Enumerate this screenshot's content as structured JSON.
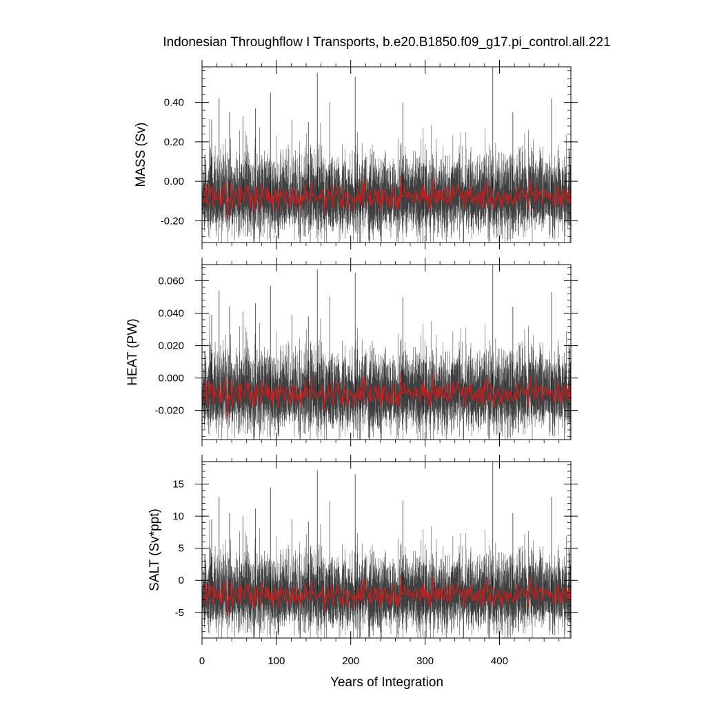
{
  "chart_data": {
    "type": "line",
    "title": "Indonesian Throughflow I Transports, b.e20.B1850.f09_g17.pi_control.all.221",
    "xlabel": "Years of Integration",
    "xlim": [
      0,
      496
    ],
    "xticks": [
      {
        "value": 0,
        "label": "0"
      },
      {
        "value": 100,
        "label": "100"
      },
      {
        "value": 200,
        "label": "200"
      },
      {
        "value": 300,
        "label": "300"
      },
      {
        "value": 400,
        "label": "400"
      }
    ],
    "colors": {
      "monthly": "#000000",
      "annual": "#c81e1e",
      "axis": "#000000"
    },
    "panels": [
      {
        "id": "mass",
        "ylabel": "MASS (Sv)",
        "ylim": [
          -0.31,
          0.58
        ],
        "yticks": [
          {
            "value": -0.2,
            "label": "-0.20"
          },
          {
            "value": 0.0,
            "label": "0.00"
          },
          {
            "value": 0.2,
            "label": "0.20"
          },
          {
            "value": 0.4,
            "label": "0.40"
          }
        ],
        "minor_step": 0.04,
        "mean": -0.09,
        "noise_sd": 0.085,
        "spikes": [
          {
            "x": 13,
            "y": 0.31
          },
          {
            "x": 23,
            "y": 0.42
          },
          {
            "x": 37,
            "y": 0.35
          },
          {
            "x": 55,
            "y": 0.33
          },
          {
            "x": 72,
            "y": 0.37
          },
          {
            "x": 92,
            "y": 0.45
          },
          {
            "x": 121,
            "y": 0.31
          },
          {
            "x": 143,
            "y": 0.3
          },
          {
            "x": 155,
            "y": 0.55
          },
          {
            "x": 172,
            "y": 0.4
          },
          {
            "x": 206,
            "y": 0.53
          },
          {
            "x": 213,
            "y": -0.31
          },
          {
            "x": 270,
            "y": 0.4
          },
          {
            "x": 297,
            "y": -0.31
          },
          {
            "x": 391,
            "y": 0.58
          },
          {
            "x": 418,
            "y": 0.35
          },
          {
            "x": 470,
            "y": 0.42
          }
        ],
        "annual_mean_approx": -0.09
      },
      {
        "id": "heat",
        "ylabel": "HEAT (PW)",
        "ylim": [
          -0.038,
          0.07
        ],
        "yticks": [
          {
            "value": -0.02,
            "label": "-0.020"
          },
          {
            "value": 0.0,
            "label": "0.000"
          },
          {
            "value": 0.02,
            "label": "0.020"
          },
          {
            "value": 0.04,
            "label": "0.040"
          },
          {
            "value": 0.06,
            "label": "0.060"
          }
        ],
        "minor_step": 0.004,
        "mean": -0.011,
        "noise_sd": 0.0105,
        "spikes": [
          {
            "x": 13,
            "y": 0.039
          },
          {
            "x": 23,
            "y": 0.054
          },
          {
            "x": 37,
            "y": 0.044
          },
          {
            "x": 55,
            "y": 0.041
          },
          {
            "x": 72,
            "y": 0.046
          },
          {
            "x": 92,
            "y": 0.057
          },
          {
            "x": 121,
            "y": 0.039
          },
          {
            "x": 143,
            "y": 0.038
          },
          {
            "x": 155,
            "y": 0.067
          },
          {
            "x": 172,
            "y": 0.05
          },
          {
            "x": 206,
            "y": 0.065
          },
          {
            "x": 213,
            "y": -0.038
          },
          {
            "x": 270,
            "y": 0.05
          },
          {
            "x": 297,
            "y": -0.038
          },
          {
            "x": 391,
            "y": 0.07
          },
          {
            "x": 418,
            "y": 0.044
          },
          {
            "x": 470,
            "y": 0.053
          }
        ],
        "annual_mean_approx": -0.011
      },
      {
        "id": "salt",
        "ylabel": "SALT (Sv*ppt)",
        "ylim": [
          -9.0,
          18.5
        ],
        "yticks": [
          {
            "value": -5,
            "label": "-5"
          },
          {
            "value": 0,
            "label": "0"
          },
          {
            "value": 5,
            "label": "5"
          },
          {
            "value": 10,
            "label": "10"
          },
          {
            "value": 15,
            "label": "15"
          }
        ],
        "minor_step": 1,
        "mean": -2.6,
        "noise_sd": 2.5,
        "spikes": [
          {
            "x": 13,
            "y": 9.5
          },
          {
            "x": 23,
            "y": 13.0
          },
          {
            "x": 37,
            "y": 10.5
          },
          {
            "x": 55,
            "y": 10.0
          },
          {
            "x": 72,
            "y": 11.2
          },
          {
            "x": 92,
            "y": 14.5
          },
          {
            "x": 121,
            "y": 9.5
          },
          {
            "x": 143,
            "y": 9.2
          },
          {
            "x": 155,
            "y": 17.2
          },
          {
            "x": 172,
            "y": 12.3
          },
          {
            "x": 206,
            "y": 16.5
          },
          {
            "x": 213,
            "y": -8.8
          },
          {
            "x": 270,
            "y": 12.4
          },
          {
            "x": 297,
            "y": -8.8
          },
          {
            "x": 391,
            "y": 18.4
          },
          {
            "x": 418,
            "y": 10.5
          },
          {
            "x": 470,
            "y": 13.0
          }
        ],
        "annual_mean_approx": -2.6
      }
    ]
  }
}
